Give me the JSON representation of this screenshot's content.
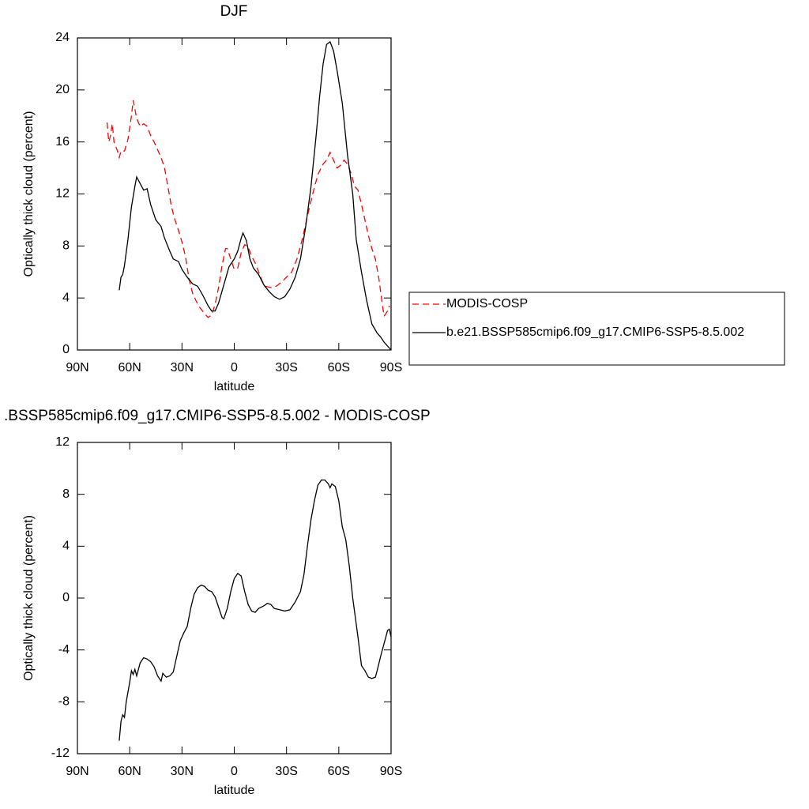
{
  "chart_data": [
    {
      "type": "line",
      "title": "DJF",
      "xlabel": "latitude",
      "ylabel": "Optically thick cloud (percent)",
      "xlim": [
        90,
        -90
      ],
      "ylim": [
        0,
        24
      ],
      "xticks": [
        {
          "value": 90,
          "label": "90N"
        },
        {
          "value": 60,
          "label": "60N"
        },
        {
          "value": 30,
          "label": "30N"
        },
        0,
        {
          "value": -30,
          "label": "30S"
        },
        {
          "value": -60,
          "label": "60S"
        },
        {
          "value": -90,
          "label": "90S"
        }
      ],
      "yticks": [
        0,
        4,
        8,
        12,
        16,
        20,
        24
      ],
      "legend": "right",
      "series": [
        {
          "name": "MODIS-COSP",
          "color": "#ff0000",
          "dashed": true,
          "x": [
            73,
            72,
            71,
            70,
            69,
            67,
            66,
            65,
            63,
            61,
            59,
            58,
            56,
            54,
            52,
            50,
            48,
            46,
            44,
            42,
            40,
            38,
            36,
            34,
            32,
            30,
            28,
            26,
            24,
            22,
            20,
            17,
            15,
            13,
            11,
            9,
            7,
            5,
            4,
            2,
            0,
            -2,
            -4,
            -6,
            -8,
            -10,
            -12,
            -14,
            -16,
            -18,
            -21,
            -24,
            -27,
            -30,
            -33,
            -36,
            -39,
            -42,
            -45,
            -48,
            -51,
            -53,
            -55,
            -57,
            -59,
            -61,
            -63,
            -65,
            -67,
            -69,
            -71,
            -73,
            -75,
            -77,
            -79,
            -81,
            -83,
            -85,
            -86,
            -88,
            -89
          ],
          "values": [
            17.5,
            16.0,
            16.5,
            17.4,
            16.0,
            15.3,
            14.8,
            15.3,
            15.3,
            16.2,
            18.0,
            19.2,
            17.8,
            17.2,
            17.4,
            17.2,
            16.5,
            16.0,
            15.4,
            14.8,
            14.0,
            12.5,
            11.0,
            10.0,
            9.2,
            8.3,
            7.2,
            5.5,
            4.4,
            3.8,
            3.3,
            2.8,
            2.5,
            2.7,
            3.5,
            4.8,
            6.5,
            7.8,
            7.8,
            7.0,
            6.2,
            6.3,
            7.5,
            8.1,
            7.9,
            7.2,
            6.7,
            6.0,
            5.3,
            4.9,
            4.8,
            4.9,
            5.2,
            5.6,
            6.0,
            7.0,
            8.5,
            10.3,
            12.0,
            13.5,
            14.3,
            14.6,
            15.2,
            14.6,
            14.0,
            14.2,
            14.6,
            14.3,
            13.6,
            12.6,
            12.3,
            11.2,
            10.0,
            8.8,
            7.8,
            7.0,
            5.5,
            3.5,
            2.6,
            3.0,
            3.4
          ]
        },
        {
          "name": "b.e21.BSSP585cmip6.f09_g17.CMIP6-SSP5-8.5.002",
          "color": "#000000",
          "dashed": false,
          "x": [
            66,
            65,
            64,
            63,
            61,
            59,
            57,
            56,
            54,
            52,
            50,
            48,
            45,
            42,
            40,
            37,
            35,
            32,
            30,
            27,
            24,
            21,
            18,
            15,
            13,
            11,
            9,
            6,
            3,
            0,
            -2,
            -4,
            -5,
            -7,
            -9,
            -11,
            -14,
            -17,
            -20,
            -23,
            -26,
            -29,
            -32,
            -35,
            -38,
            -41,
            -44,
            -47,
            -49,
            -51,
            -53,
            -55,
            -57,
            -59,
            -62,
            -65,
            -68,
            -70,
            -73,
            -76,
            -79,
            -82,
            -84,
            -86,
            -88,
            -90
          ],
          "values": [
            4.6,
            5.6,
            5.8,
            6.5,
            8.5,
            11.0,
            12.6,
            13.3,
            12.8,
            12.3,
            12.4,
            11.2,
            10.0,
            9.5,
            8.6,
            7.6,
            7.0,
            6.8,
            6.2,
            5.6,
            5.1,
            4.9,
            4.2,
            3.4,
            3.0,
            3.0,
            3.6,
            5.0,
            6.4,
            7.0,
            7.6,
            8.6,
            9.0,
            8.4,
            7.0,
            6.3,
            5.8,
            5.0,
            4.5,
            4.1,
            3.9,
            4.1,
            4.7,
            5.6,
            7.0,
            9.5,
            12.5,
            16.5,
            19.5,
            22.0,
            23.5,
            23.7,
            23.0,
            21.5,
            19.0,
            15.0,
            12.0,
            8.5,
            6.0,
            3.8,
            2.0,
            1.3,
            1.0,
            0.6,
            0.3,
            0.0
          ]
        }
      ]
    },
    {
      "type": "line",
      "title": ".BSSP585cmip6.f09_g17.CMIP6-SSP5-8.5.002 - MODIS-COSP",
      "xlabel": "latitude",
      "ylabel": "Optically thick cloud (percent)",
      "xlim": [
        90,
        -90
      ],
      "ylim": [
        -12,
        12
      ],
      "xticks": [
        {
          "value": 90,
          "label": "90N"
        },
        {
          "value": 60,
          "label": "60N"
        },
        {
          "value": 30,
          "label": "30N"
        },
        0,
        {
          "value": -30,
          "label": "30S"
        },
        {
          "value": -60,
          "label": "60S"
        },
        {
          "value": -90,
          "label": "90S"
        }
      ],
      "yticks": [
        -12,
        -8,
        -4,
        0,
        4,
        8,
        12
      ],
      "series": [
        {
          "color": "#000000",
          "dashed": false,
          "x": [
            66,
            65,
            64,
            63,
            62,
            60,
            59,
            58,
            57,
            56,
            54,
            52,
            50,
            48,
            46,
            44,
            42,
            41,
            39,
            37,
            35,
            33,
            31,
            29,
            27,
            25,
            23,
            21,
            19,
            17,
            15,
            13,
            11,
            9,
            7,
            6,
            4,
            2,
            0,
            -2,
            -4,
            -6,
            -8,
            -10,
            -12,
            -14,
            -17,
            -19,
            -21,
            -23,
            -26,
            -29,
            -32,
            -35,
            -38,
            -40,
            -42,
            -44,
            -46,
            -48,
            -50,
            -52,
            -54,
            -55,
            -56,
            -58,
            -60,
            -62,
            -64,
            -66,
            -68,
            -70,
            -71,
            -73,
            -75,
            -77,
            -79,
            -81,
            -82,
            -84,
            -86,
            -88,
            -89,
            -90
          ],
          "values": [
            -11.0,
            -9.5,
            -9.0,
            -9.2,
            -8.0,
            -6.5,
            -5.6,
            -5.9,
            -5.5,
            -6.0,
            -5.0,
            -4.6,
            -4.7,
            -4.9,
            -5.3,
            -6.0,
            -6.4,
            -5.8,
            -6.1,
            -6.0,
            -5.7,
            -4.5,
            -3.3,
            -2.7,
            -2.2,
            -0.8,
            0.3,
            0.8,
            1.0,
            0.9,
            0.6,
            0.5,
            0.1,
            -0.7,
            -1.5,
            -1.6,
            -0.8,
            0.5,
            1.5,
            1.9,
            1.7,
            0.5,
            -0.5,
            -1.0,
            -1.1,
            -0.8,
            -0.6,
            -0.4,
            -0.5,
            -0.8,
            -0.9,
            -1.0,
            -0.9,
            -0.3,
            0.5,
            1.8,
            4.0,
            6.0,
            7.5,
            8.7,
            9.1,
            9.1,
            8.8,
            8.5,
            8.8,
            8.6,
            7.5,
            5.5,
            4.5,
            2.5,
            0.0,
            -2.0,
            -3.0,
            -5.2,
            -5.6,
            -6.1,
            -6.2,
            -6.1,
            -5.6,
            -4.5,
            -3.5,
            -2.5,
            -2.4,
            -3.0
          ]
        }
      ]
    }
  ]
}
